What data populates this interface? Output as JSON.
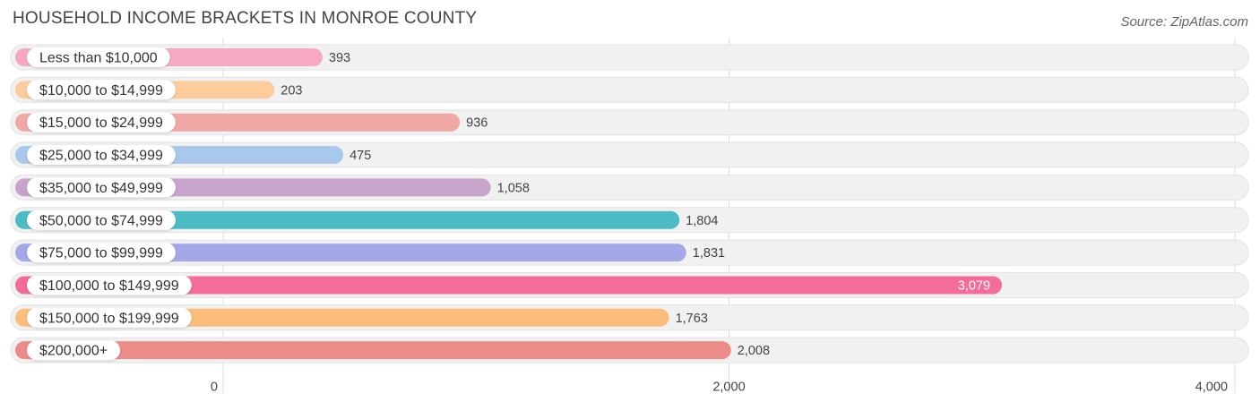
{
  "title": "HOUSEHOLD INCOME BRACKETS IN MONROE COUNTY",
  "source": "Source: ZipAtlas.com",
  "chart_data": {
    "type": "bar",
    "orientation": "horizontal",
    "categories": [
      "Less than $10,000",
      "$10,000 to $14,999",
      "$15,000 to $24,999",
      "$25,000 to $34,999",
      "$35,000 to $49,999",
      "$50,000 to $74,999",
      "$75,000 to $99,999",
      "$100,000 to $149,999",
      "$150,000 to $199,999",
      "$200,000+"
    ],
    "values": [
      393,
      203,
      936,
      475,
      1058,
      1804,
      1831,
      3079,
      1763,
      2008
    ],
    "value_labels": [
      "393",
      "203",
      "936",
      "475",
      "1,058",
      "1,804",
      "1,831",
      "3,079",
      "1,763",
      "2,008"
    ],
    "colors": [
      "#f7a8c4",
      "#fccc9c",
      "#f0a8a4",
      "#a8c8ec",
      "#c8a4cc",
      "#4cbcc4",
      "#a4a8e8",
      "#f46c98",
      "#fcbc7c",
      "#ec8c88"
    ],
    "xlim": [
      0,
      4000
    ],
    "xticks": [
      0,
      2000,
      4000
    ],
    "xtick_labels": [
      "0",
      "2,000",
      "4,000"
    ],
    "grid": true
  }
}
